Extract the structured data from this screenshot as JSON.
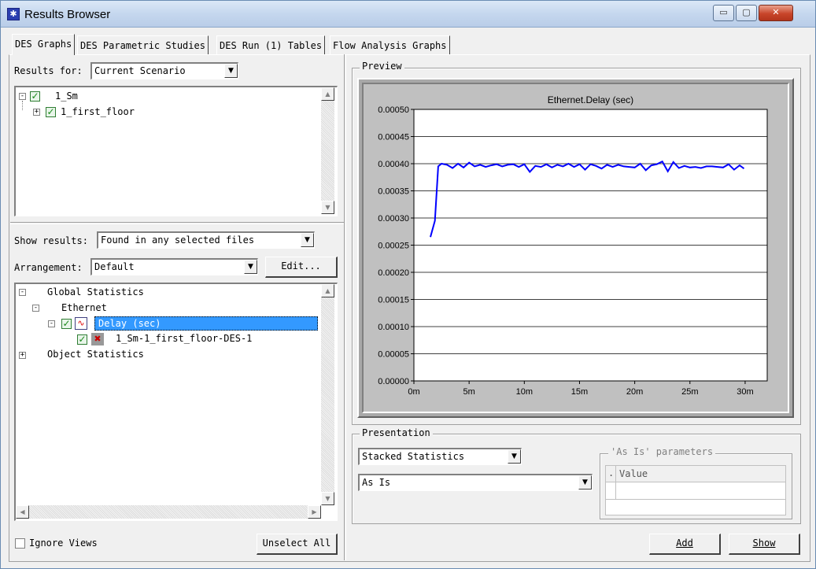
{
  "window": {
    "title": "Results Browser",
    "controls": {
      "minimize": "▭",
      "maximize": "▢",
      "close": "✕"
    }
  },
  "tabs": [
    {
      "label": "DES Graphs",
      "active": true
    },
    {
      "label": "DES Parametric Studies",
      "active": false
    },
    {
      "label": "DES Run (1) Tables",
      "active": false
    },
    {
      "label": "Flow Analysis Graphs",
      "active": false
    }
  ],
  "results_for": {
    "label": "Results for:",
    "value": "Current Scenario"
  },
  "file_tree": [
    {
      "label": "1_Sm",
      "checked": true,
      "expanded": true
    },
    {
      "label": "1_first_floor",
      "checked": true,
      "expanded": false
    }
  ],
  "show_results": {
    "label": "Show results:",
    "value": "Found in any selected files"
  },
  "arrangement": {
    "label": "Arrangement:",
    "value": "Default",
    "edit_button": "Edit..."
  },
  "stats_tree": [
    {
      "label": "Global Statistics",
      "level": 0
    },
    {
      "label": "Ethernet",
      "level": 1
    },
    {
      "label": "Delay (sec)",
      "level": 2,
      "selected": true
    },
    {
      "label": "1_Sm-1_first_floor-DES-1",
      "level": 3
    },
    {
      "label": "Object Statistics",
      "level": 0
    }
  ],
  "ignore_views": {
    "label": "Ignore Views",
    "checked": false
  },
  "unselect_all": "Unselect All",
  "preview": {
    "title": "Preview"
  },
  "chart_data": {
    "type": "line",
    "title": "Ethernet.Delay (sec)",
    "xlabel": "",
    "ylabel": "",
    "xlim": [
      0,
      32
    ],
    "ylim": [
      0,
      0.0005
    ],
    "x_ticks": [
      "0m",
      "5m",
      "10m",
      "15m",
      "20m",
      "25m",
      "30m"
    ],
    "y_ticks": [
      "0.00000",
      "0.00005",
      "0.00010",
      "0.00015",
      "0.00020",
      "0.00025",
      "0.00030",
      "0.00035",
      "0.00040",
      "0.00045",
      "0.00050"
    ],
    "grid": true,
    "series": [
      {
        "color": "#0000ff",
        "x": [
          1.5,
          1.9,
          2.2,
          2.5,
          3.0,
          3.5,
          4.0,
          4.5,
          5.0,
          5.5,
          6.0,
          6.5,
          7.0,
          7.5,
          8.0,
          8.5,
          9.0,
          9.5,
          10.0,
          10.5,
          11.0,
          11.5,
          12.0,
          12.5,
          13.0,
          13.5,
          14.0,
          14.5,
          15.0,
          15.5,
          16.0,
          16.5,
          17.0,
          17.5,
          18.0,
          18.5,
          19.0,
          19.5,
          20.0,
          20.5,
          21.0,
          21.5,
          22.0,
          22.5,
          23.0,
          23.5,
          24.0,
          24.5,
          25.0,
          25.5,
          26.0,
          26.5,
          27.0,
          27.5,
          28.0,
          28.5,
          29.0,
          29.5,
          29.9
        ],
        "y": [
          0.000265,
          0.000295,
          0.000395,
          0.0004,
          0.000398,
          0.000392,
          0.0004,
          0.000393,
          0.000402,
          0.000395,
          0.000398,
          0.000394,
          0.000397,
          0.000399,
          0.000395,
          0.000398,
          0.000399,
          0.000394,
          0.000399,
          0.000385,
          0.000396,
          0.000394,
          0.000399,
          0.000393,
          0.000398,
          0.000395,
          0.0004,
          0.000394,
          0.000399,
          0.000389,
          0.000399,
          0.000396,
          0.000391,
          0.000398,
          0.000394,
          0.000398,
          0.000395,
          0.000394,
          0.000393,
          0.0004,
          0.000388,
          0.000397,
          0.000399,
          0.000404,
          0.000386,
          0.000403,
          0.000392,
          0.000396,
          0.000393,
          0.000394,
          0.000392,
          0.000395,
          0.000395,
          0.000394,
          0.000393,
          0.000399,
          0.000389,
          0.000397,
          0.000391
        ]
      }
    ]
  },
  "presentation": {
    "title": "Presentation",
    "stack_mode": "Stacked Statistics",
    "filter": "As Is",
    "params_title": "'As Is' parameters",
    "params_header_dot": ".",
    "params_header": "Value"
  },
  "buttons": {
    "add": "Add",
    "show": "Show"
  }
}
